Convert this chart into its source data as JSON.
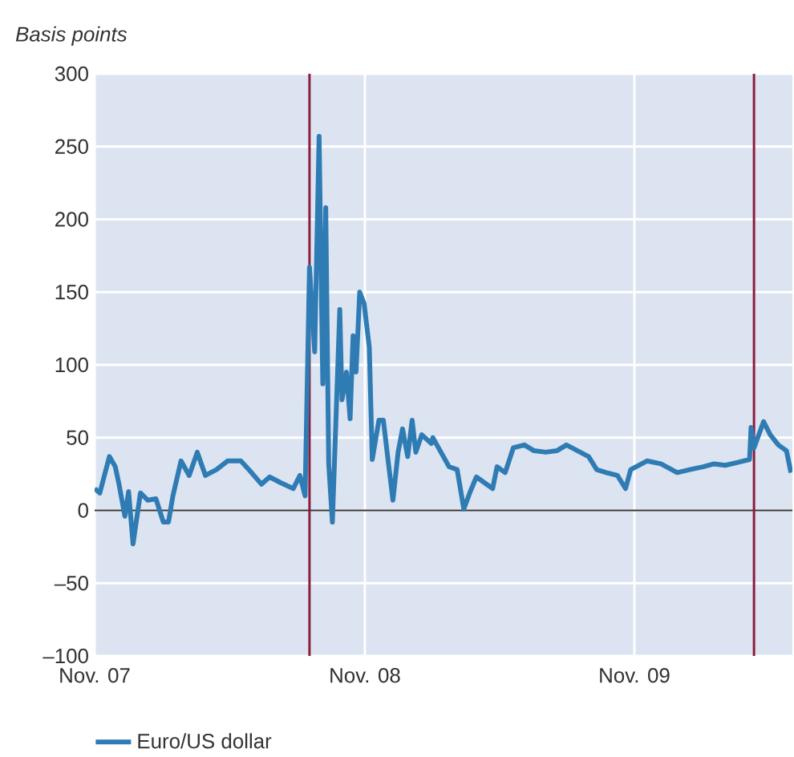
{
  "chart_data": {
    "type": "line",
    "ylabel": "Basis points",
    "x": [
      "2007-11-01",
      "2007-11-08",
      "2007-11-21",
      "2007-11-29",
      "2007-12-04",
      "2007-12-12",
      "2007-12-17",
      "2007-12-23",
      "2008-01-02",
      "2008-01-12",
      "2008-01-23",
      "2008-02-02",
      "2008-02-09",
      "2008-02-15",
      "2008-02-26",
      "2008-03-08",
      "2008-03-19",
      "2008-03-30",
      "2008-04-14",
      "2008-04-29",
      "2008-05-17",
      "2008-05-28",
      "2008-06-14",
      "2008-06-25",
      "2008-07-10",
      "2008-07-27",
      "2008-08-05",
      "2008-08-12",
      "2008-08-18",
      "2008-08-25",
      "2008-08-31",
      "2008-09-05",
      "2008-09-09",
      "2008-09-13",
      "2008-09-18",
      "2008-09-28",
      "2008-10-01",
      "2008-10-07",
      "2008-10-12",
      "2008-10-16",
      "2008-10-20",
      "2008-10-25",
      "2008-10-31",
      "2008-11-07",
      "2008-11-11",
      "2008-11-20",
      "2008-11-26",
      "2008-12-03",
      "2008-12-09",
      "2008-12-16",
      "2008-12-22",
      "2008-12-29",
      "2009-01-04",
      "2009-01-09",
      "2009-01-17",
      "2009-01-30",
      "2009-02-01",
      "2009-02-12",
      "2009-02-23",
      "2009-03-06",
      "2009-03-15",
      "2009-03-23",
      "2009-04-01",
      "2009-04-12",
      "2009-04-23",
      "2009-04-29",
      "2009-05-10",
      "2009-05-21",
      "2009-06-05",
      "2009-06-18",
      "2009-07-04",
      "2009-07-19",
      "2009-08-01",
      "2009-08-16",
      "2009-08-31",
      "2009-09-11",
      "2009-09-24",
      "2009-10-09",
      "2009-10-20",
      "2009-10-27",
      "2009-11-18",
      "2009-12-07",
      "2009-12-29",
      "2010-01-15",
      "2010-02-02",
      "2010-02-17",
      "2010-03-04",
      "2010-03-21",
      "2010-04-06",
      "2010-04-08",
      "2010-04-12",
      "2010-04-25",
      "2010-05-04",
      "2010-05-15",
      "2010-05-26",
      "2010-06-01"
    ],
    "series": [
      {
        "name": "Euro/US dollar",
        "color": "#2f7bb4",
        "values": [
          15,
          12,
          37,
          30,
          18,
          -4,
          13,
          -23,
          12,
          7,
          8,
          -8,
          -8,
          10,
          34,
          24,
          40,
          24,
          28,
          34,
          34,
          28,
          18,
          23,
          19,
          15,
          24,
          10,
          167,
          109,
          257,
          87,
          208,
          32,
          -8,
          138,
          76,
          95,
          63,
          120,
          95,
          150,
          142,
          112,
          35,
          62,
          62,
          32,
          7,
          40,
          56,
          37,
          62,
          40,
          52,
          46,
          50,
          40,
          30,
          28,
          1,
          12,
          23,
          19,
          15,
          30,
          26,
          43,
          45,
          41,
          40,
          41,
          45,
          41,
          37,
          28,
          26,
          24,
          15,
          28,
          34,
          32,
          26,
          28,
          30,
          32,
          31,
          33,
          35,
          57,
          43,
          61,
          52,
          45,
          41,
          26
        ]
      }
    ],
    "xlim": [
      "2007-11-01",
      "2010-06-03"
    ],
    "xticks": [
      {
        "value": "2007-11-01",
        "label": "Nov. 07"
      },
      {
        "value": "2008-11-01",
        "label": "Nov. 08"
      },
      {
        "value": "2009-11-01",
        "label": "Nov. 09"
      }
    ],
    "ylim": [
      -100,
      300
    ],
    "yticks": [
      {
        "value": -100,
        "label": "–100"
      },
      {
        "value": -50,
        "label": "–50"
      },
      0,
      50,
      100,
      150,
      200,
      250,
      300
    ],
    "ref_lines": [
      {
        "axis": "y",
        "value": 0,
        "color": "#333333"
      },
      {
        "axis": "x",
        "value": "2008-08-18",
        "color": "#8c1c3e"
      },
      {
        "axis": "x",
        "value": "2010-04-12",
        "color": "#8c1c3e"
      }
    ],
    "grid": true,
    "legend": "bottom left"
  }
}
